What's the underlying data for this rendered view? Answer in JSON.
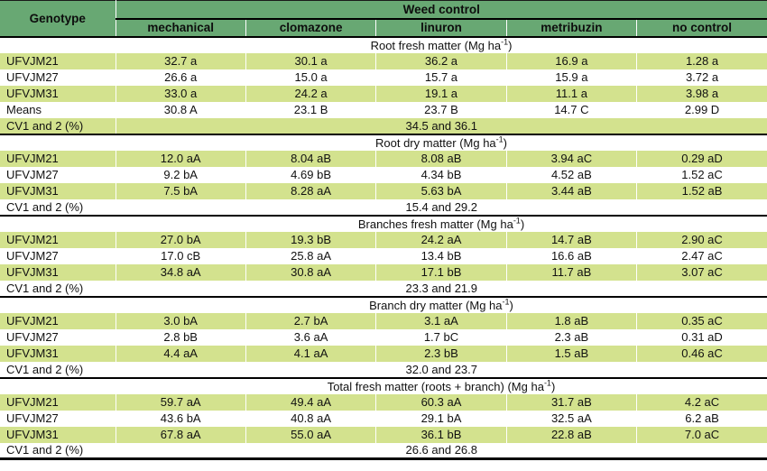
{
  "theme": {
    "header_green": "#68a873",
    "row_green": "#d3e28e",
    "line_black": "#000000"
  },
  "chart_data": {
    "type": "table",
    "header": {
      "genotype": "Genotype",
      "group": "Weed control",
      "treatments": [
        "mechanical",
        "clomazone",
        "linuron",
        "metribuzin",
        "no control"
      ]
    },
    "cv_label": "CV1 and 2 (%)",
    "unit_note": "Mg ha-1",
    "sections": [
      {
        "title": {
          "prefix": "Root fresh matter (Mg ha",
          "sup": "-1",
          "suffix": ")"
        },
        "rows": [
          {
            "label": "UFVJM21",
            "values": [
              "32.7 a",
              "30.1 a",
              "36.2 a",
              "16.9 a",
              "1.28 a"
            ]
          },
          {
            "label": "UFVJM27",
            "values": [
              "26.6 a",
              "15.0 a",
              "15.7 a",
              "15.9 a",
              "3.72 a"
            ]
          },
          {
            "label": "UFVJM31",
            "values": [
              "33.0 a",
              "24.2 a",
              "19.1 a",
              "11.1 a",
              "3.98 a"
            ]
          },
          {
            "label": "Means",
            "values": [
              "30.8 A",
              "23.1 B",
              "23.7 B",
              "14.7 C",
              "2.99 D"
            ]
          }
        ],
        "cv": "34.5 and 36.1"
      },
      {
        "title": {
          "prefix": "Root dry matter (Mg ha",
          "sup": "-1",
          "suffix": ")"
        },
        "rows": [
          {
            "label": "UFVJM21",
            "values": [
              "12.0 aA",
              "8.04 aB",
              "8.08 aB",
              "3.94 aC",
              "0.29 aD"
            ]
          },
          {
            "label": "UFVJM27",
            "values": [
              "9.2 bA",
              "4.69 bB",
              "4.34 bB",
              "4.52 aB",
              "1.52 aC"
            ]
          },
          {
            "label": "UFVJM31",
            "values": [
              "7.5 bA",
              "8.28 aA",
              "5.63 bA",
              "3.44 aB",
              "1.52 aB"
            ]
          }
        ],
        "cv": "15.4 and 29.2"
      },
      {
        "title": {
          "prefix": "Branches fresh matter (Mg ha",
          "sup": "-1",
          "suffix": ")"
        },
        "rows": [
          {
            "label": "UFVJM21",
            "values": [
              "27.0 bA",
              "19.3 bB",
              "24.2 aA",
              "14.7 aB",
              "2.90 aC"
            ]
          },
          {
            "label": "UFVJM27",
            "values": [
              "17.0 cB",
              "25.8 aA",
              "13.4 bB",
              "16.6 aB",
              "2.47 aC"
            ]
          },
          {
            "label": "UFVJM31",
            "values": [
              "34.8 aA",
              "30.8 aA",
              "17.1 bB",
              "11.7 aB",
              "3.07 aC"
            ]
          }
        ],
        "cv": "23.3 and 21.9"
      },
      {
        "title": {
          "prefix": "Branch dry matter (Mg ha",
          "sup": "-1",
          "suffix": ")"
        },
        "rows": [
          {
            "label": "UFVJM21",
            "values": [
              "3.0 bA",
              "2.7 bA",
              "3.1 aA",
              "1.8 aB",
              "0.35 aC"
            ]
          },
          {
            "label": "UFVJM27",
            "values": [
              "2.8 bB",
              "3.6 aA",
              "1.7 bC",
              "2.3 aB",
              "0.31 aD"
            ]
          },
          {
            "label": "UFVJM31",
            "values": [
              "4.4 aA",
              "4.1 aA",
              "2.3 bB",
              "1.5 aB",
              "0.46 aC"
            ]
          }
        ],
        "cv": "32.0 and 23.7"
      },
      {
        "title": {
          "prefix": "Total fresh matter (roots + branch) (Mg ha",
          "sup": "-1",
          "suffix": ")"
        },
        "rows": [
          {
            "label": "UFVJM21",
            "values": [
              "59.7 aA",
              "49.4 aA",
              "60.3 aA",
              "31.7 aB",
              "4.2 aC"
            ]
          },
          {
            "label": "UFVJM27",
            "values": [
              "43.6 bA",
              "40.8 aA",
              "29.1 bA",
              "32.5 aA",
              "6.2 aB"
            ]
          },
          {
            "label": "UFVJM31",
            "values": [
              "67.8 aA",
              "55.0 aA",
              "36.1 bB",
              "22.8 aB",
              "7.0 aC"
            ]
          }
        ],
        "cv": "26.6 and 26.8"
      }
    ]
  }
}
